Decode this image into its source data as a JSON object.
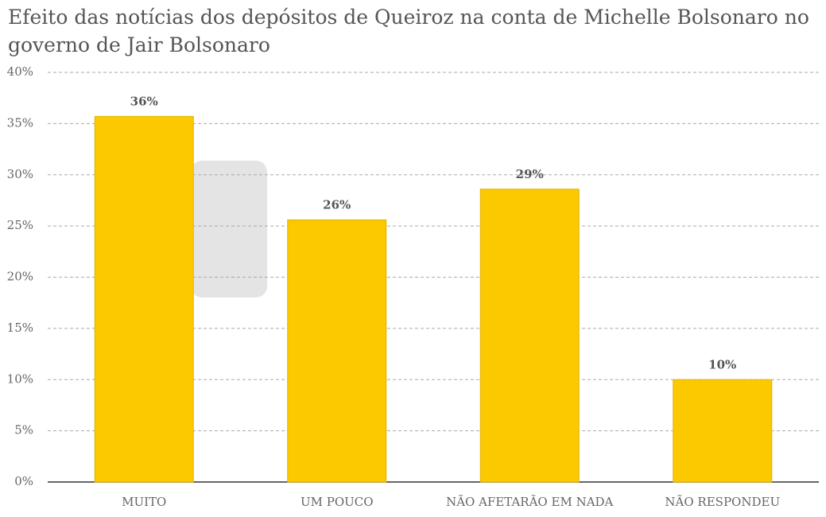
{
  "chart_data": {
    "type": "bar",
    "title": "Efeito das notícias dos depósitos de Queiroz na conta de Michelle Bolsonaro no governo de Jair Bolsonaro",
    "categories": [
      "MUITO",
      "UM POUCO",
      "NÃO AFETARÃO EM NADA",
      "NÃO RESPONDEU"
    ],
    "values": [
      35.7,
      25.6,
      28.6,
      10.0
    ],
    "value_labels": [
      "36%",
      "26%",
      "29%",
      "10%"
    ],
    "color": "#fcc800",
    "ylim": [
      0,
      40
    ],
    "yticks": [
      {
        "value": 0,
        "label": "0%"
      },
      {
        "value": 5,
        "label": "5%"
      },
      {
        "value": 10,
        "label": "10%"
      },
      {
        "value": 15,
        "label": "15%"
      },
      {
        "value": 20,
        "label": "20%"
      },
      {
        "value": 25,
        "label": "25%"
      },
      {
        "value": 30,
        "label": "30%"
      },
      {
        "value": 35,
        "label": "35%"
      },
      {
        "value": 40,
        "label": "40%"
      }
    ],
    "grid": true
  }
}
